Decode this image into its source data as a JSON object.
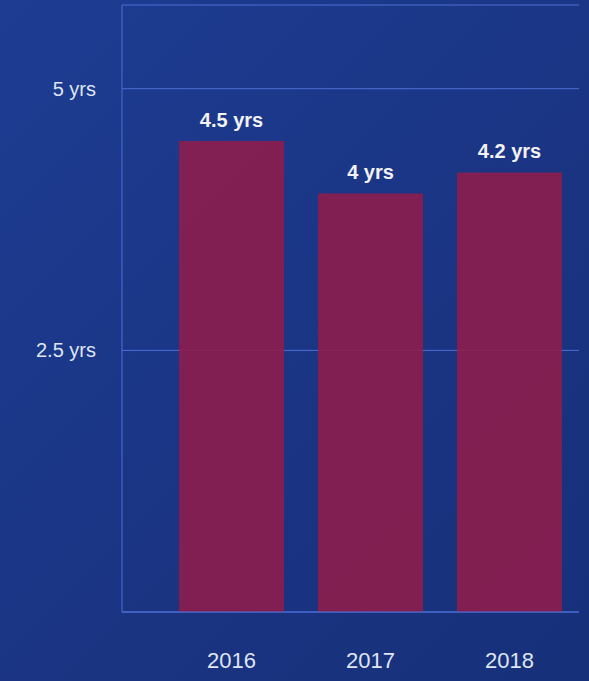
{
  "chart_data": {
    "type": "bar",
    "categories": [
      "2016",
      "2017",
      "2018"
    ],
    "values": [
      4.5,
      4,
      4.2
    ],
    "value_labels": [
      "4.5 yrs",
      "4 yrs",
      "4.2 yrs"
    ],
    "data_labels": true,
    "color": "#8e1d4c",
    "ylim": [
      0,
      5.8
    ],
    "yticks": [
      {
        "value": 2.5,
        "label": "2.5 yrs"
      },
      {
        "value": 5,
        "label": "5 yrs"
      }
    ],
    "grid": true
  }
}
